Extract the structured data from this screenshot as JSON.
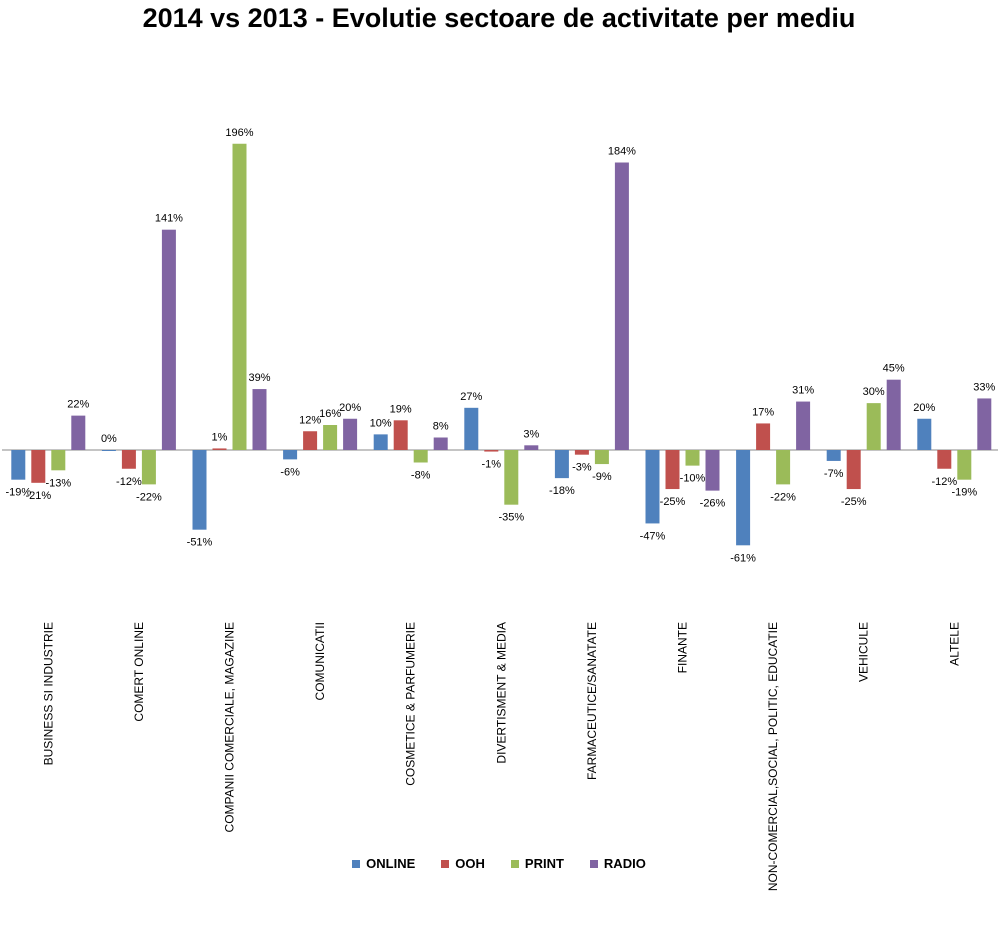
{
  "chart_data": {
    "type": "bar",
    "title": "2014 vs 2013 - Evolutie sectoare de activitate per mediu",
    "categories": [
      "BUSINESS SI INDUSTRIE",
      "COMERT ONLINE",
      "COMPANII COMERCIALE, MAGAZINE",
      "COMUNICATII",
      "COSMETICE & PARFUMERIE",
      "DIVERTISMENT & MEDIA",
      "FARMACEUTICE/SANATATE",
      "FINANTE",
      "NON-COMERCIAL,SOCIAL, POLITIC, EDUCATIE",
      "VEHICULE",
      "ALTELE"
    ],
    "series": [
      {
        "name": "ONLINE",
        "color": "#4F81BD",
        "values": [
          -19,
          0,
          -51,
          -6,
          10,
          27,
          -18,
          -47,
          -61,
          -7,
          20
        ]
      },
      {
        "name": "OOH",
        "color": "#C0504D",
        "values": [
          -21,
          -12,
          1,
          12,
          19,
          -1,
          -3,
          -25,
          17,
          -25,
          -12
        ]
      },
      {
        "name": "PRINT",
        "color": "#9BBB59",
        "values": [
          -13,
          -22,
          196,
          16,
          -8,
          -35,
          -9,
          -10,
          -22,
          30,
          -19
        ]
      },
      {
        "name": "RADIO",
        "color": "#8064A2",
        "values": [
          22,
          141,
          39,
          20,
          8,
          3,
          184,
          -26,
          31,
          45,
          33
        ]
      }
    ],
    "value_suffix": "%",
    "legend_position": "bottom",
    "grid": false
  }
}
